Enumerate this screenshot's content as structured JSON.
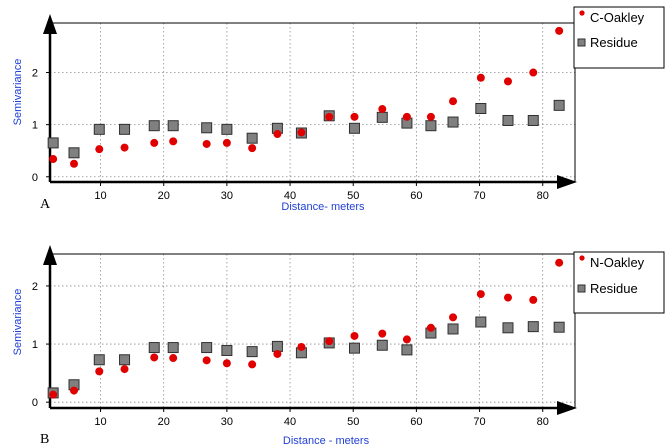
{
  "colors": {
    "series_circle": "#e00000",
    "series_square_fill": "#808080",
    "series_square_stroke": "#303030",
    "axis_title": "#1f3fd6",
    "grid": "#8c8c8c"
  },
  "chart_data": [
    {
      "type": "scatter",
      "panel_label": "A",
      "xlabel": "Distance- meters",
      "ylabel": "Semivariance",
      "xlim": [
        2,
        84
      ],
      "ylim": [
        -0.1,
        2.95
      ],
      "xticks": [
        10,
        20,
        30,
        40,
        50,
        60,
        70,
        80
      ],
      "yticks": [
        0,
        1,
        2
      ],
      "grid": true,
      "legend_position": "top-right-outside",
      "series": [
        {
          "name": "C-Oakley",
          "marker": "circle",
          "points": [
            [
              2.5,
              0.34
            ],
            [
              5.8,
              0.25
            ],
            [
              9.8,
              0.53
            ],
            [
              13.8,
              0.56
            ],
            [
              18.5,
              0.65
            ],
            [
              21.5,
              0.68
            ],
            [
              26.8,
              0.63
            ],
            [
              30.0,
              0.65
            ],
            [
              34.0,
              0.55
            ],
            [
              38.0,
              0.82
            ],
            [
              41.8,
              0.85
            ],
            [
              46.2,
              1.15
            ],
            [
              50.2,
              1.15
            ],
            [
              54.6,
              1.3
            ],
            [
              58.5,
              1.15
            ],
            [
              62.3,
              1.15
            ],
            [
              65.8,
              1.45
            ],
            [
              70.2,
              1.9
            ],
            [
              74.5,
              1.83
            ],
            [
              78.5,
              2.0
            ],
            [
              82.6,
              2.8
            ]
          ]
        },
        {
          "name": "Residue",
          "marker": "square",
          "points": [
            [
              2.5,
              0.65
            ],
            [
              5.8,
              0.46
            ],
            [
              9.8,
              0.91
            ],
            [
              13.8,
              0.91
            ],
            [
              18.5,
              0.98
            ],
            [
              21.5,
              0.98
            ],
            [
              26.8,
              0.94
            ],
            [
              30.0,
              0.91
            ],
            [
              34.0,
              0.74
            ],
            [
              38.0,
              0.93
            ],
            [
              41.8,
              0.84
            ],
            [
              46.2,
              1.17
            ],
            [
              50.2,
              0.93
            ],
            [
              54.6,
              1.14
            ],
            [
              58.5,
              1.03
            ],
            [
              62.3,
              0.98
            ],
            [
              65.8,
              1.05
            ],
            [
              70.2,
              1.31
            ],
            [
              74.5,
              1.08
            ],
            [
              78.5,
              1.08
            ],
            [
              82.6,
              1.37
            ]
          ]
        }
      ]
    },
    {
      "type": "scatter",
      "panel_label": "B",
      "xlabel": "Distance - meters",
      "ylabel": "Semivariance",
      "xlim": [
        2,
        84
      ],
      "ylim": [
        -0.1,
        2.55
      ],
      "xticks": [
        10,
        20,
        30,
        40,
        50,
        60,
        70,
        80
      ],
      "yticks": [
        0,
        1,
        2
      ],
      "grid": true,
      "legend_position": "top-right-outside",
      "series": [
        {
          "name": "N-Oakley",
          "marker": "circle",
          "points": [
            [
              2.5,
              0.13
            ],
            [
              5.8,
              0.2
            ],
            [
              9.8,
              0.53
            ],
            [
              13.8,
              0.57
            ],
            [
              18.5,
              0.77
            ],
            [
              21.5,
              0.76
            ],
            [
              26.8,
              0.72
            ],
            [
              30.0,
              0.67
            ],
            [
              34.0,
              0.65
            ],
            [
              38.0,
              0.83
            ],
            [
              41.8,
              0.95
            ],
            [
              46.2,
              1.05
            ],
            [
              50.2,
              1.14
            ],
            [
              54.6,
              1.18
            ],
            [
              58.5,
              1.08
            ],
            [
              62.3,
              1.28
            ],
            [
              65.8,
              1.46
            ],
            [
              70.2,
              1.86
            ],
            [
              74.5,
              1.8
            ],
            [
              78.5,
              1.76
            ],
            [
              82.6,
              2.4
            ]
          ]
        },
        {
          "name": "Residue",
          "marker": "square",
          "points": [
            [
              2.5,
              0.16
            ],
            [
              5.8,
              0.3
            ],
            [
              9.8,
              0.73
            ],
            [
              13.8,
              0.73
            ],
            [
              18.5,
              0.94
            ],
            [
              21.5,
              0.94
            ],
            [
              26.8,
              0.94
            ],
            [
              30.0,
              0.89
            ],
            [
              34.0,
              0.87
            ],
            [
              38.0,
              0.96
            ],
            [
              41.8,
              0.85
            ],
            [
              46.2,
              1.02
            ],
            [
              50.2,
              0.93
            ],
            [
              54.6,
              0.98
            ],
            [
              58.5,
              0.9
            ],
            [
              62.3,
              1.19
            ],
            [
              65.8,
              1.26
            ],
            [
              70.2,
              1.38
            ],
            [
              74.5,
              1.28
            ],
            [
              78.5,
              1.3
            ],
            [
              82.6,
              1.29
            ]
          ]
        }
      ]
    }
  ]
}
